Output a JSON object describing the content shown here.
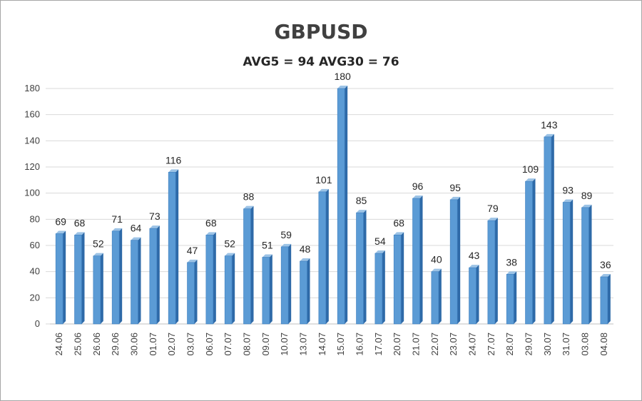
{
  "chart_data": {
    "type": "bar",
    "title": "GBPUSD",
    "subtitle": "AVG5 = 94 AVG30 = 76",
    "categories": [
      "24.06",
      "25.06",
      "26.06",
      "29.06",
      "30.06",
      "01.07",
      "02.07",
      "03.07",
      "06.07",
      "07.07",
      "08.07",
      "09.07",
      "10.07",
      "13.07",
      "14.07",
      "15.07",
      "16.07",
      "17.07",
      "20.07",
      "21.07",
      "22.07",
      "23.07",
      "24.07",
      "27.07",
      "28.07",
      "29.07",
      "30.07",
      "31.07",
      "03.08",
      "04.08"
    ],
    "values": [
      69,
      68,
      52,
      71,
      64,
      73,
      116,
      47,
      68,
      52,
      88,
      51,
      59,
      48,
      101,
      180,
      85,
      54,
      68,
      96,
      40,
      95,
      43,
      79,
      38,
      109,
      143,
      93,
      89,
      36
    ],
    "ylim": [
      0,
      180
    ],
    "yticks": [
      0,
      20,
      40,
      60,
      80,
      100,
      120,
      140,
      160,
      180
    ],
    "grid": true,
    "bar_color": "#5b9bd5",
    "bar_dark": "#2e6aa8",
    "bar_light": "#9cc3e6",
    "legend": "none"
  }
}
